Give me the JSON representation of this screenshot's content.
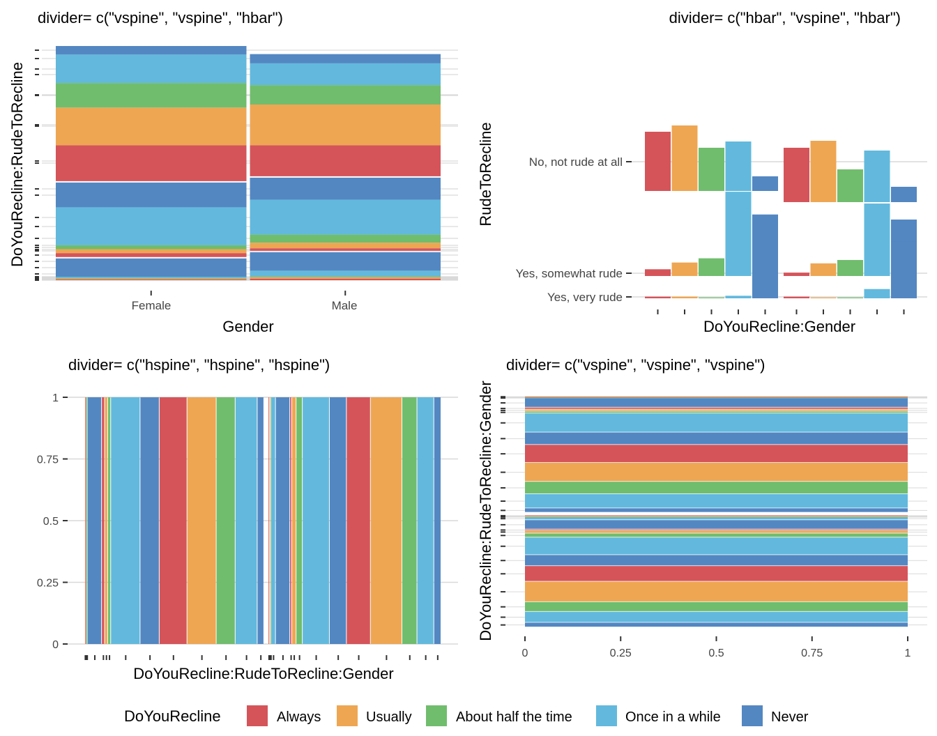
{
  "colors": {
    "Always": "#D5545A",
    "Usually": "#EEA653",
    "About half the time": "#70BD6D",
    "Once in a while": "#62B9DD",
    "Never": "#5387C2"
  },
  "legend": {
    "title": "DoYouRecline",
    "items": [
      "Always",
      "Usually",
      "About half the time",
      "Once in a while",
      "Never"
    ]
  },
  "chart_data": [
    {
      "type": "mosaic",
      "title": "divider= c(\"vspine\", \"vspine\", \"hbar\")",
      "xlabel": "Gender",
      "ylabel": "DoYouRecline:RudeToRecline",
      "x_tick_labels": [
        "Female",
        "Male"
      ],
      "gender_widths": [
        0.5,
        0.5
      ],
      "levels": {
        "DoYouRecline": [
          "Always",
          "Usually",
          "About half the time",
          "Once in a while",
          "Never"
        ],
        "RudeToRecline": [
          "No, not rude at all",
          "Yes, somewhat rude",
          "Yes, very rude"
        ]
      },
      "proportions_by_gender": {
        "Female": [
          [
            0.003,
            0.004,
            0.003,
            0.005,
            0.079
          ],
          [
            0.017,
            0.017,
            0.017,
            0.164,
            0.107
          ],
          [
            0.155,
            0.163,
            0.106,
            0.123,
            0.037
          ]
        ],
        "Male": [
          [
            0.006,
            0.007,
            0.003,
            0.025,
            0.08
          ],
          [
            0.011,
            0.024,
            0.035,
            0.151,
            0.095
          ],
          [
            0.134,
            0.176,
            0.084,
            0.094,
            0.04
          ]
        ]
      }
    },
    {
      "type": "bar",
      "title": "divider= c(\"hbar\", \"vspine\", \"hbar\")",
      "xlabel": "DoYouRecline:Gender",
      "ylabel": "RudeToRecline",
      "y_categories": [
        "No, not rude at all",
        "Yes, somewhat rude",
        "Yes, very rude"
      ],
      "x_groups": [
        "Female",
        "Male"
      ],
      "gender_widths": [
        0.5,
        0.5
      ],
      "series": [
        {
          "name": "Always",
          "values": {
            "Female": [
              0.85,
              0.08,
              0.02
            ],
            "Male": [
              0.78,
              0.04,
              0.02
            ]
          }
        },
        {
          "name": "Usually",
          "values": {
            "Female": [
              0.94,
              0.16,
              0.02
            ],
            "Male": [
              0.88,
              0.15,
              0.01
            ]
          }
        },
        {
          "name": "About half the time",
          "values": {
            "Female": [
              0.62,
              0.21,
              0.01
            ],
            "Male": [
              0.47,
              0.19,
              0.01
            ]
          }
        },
        {
          "name": "Once in a while",
          "values": {
            "Female": [
              0.71,
              1.0,
              0.03
            ],
            "Male": [
              0.74,
              0.86,
              0.11
            ]
          }
        },
        {
          "name": "Never",
          "values": {
            "Female": [
              0.21,
              0.73,
              0.73
            ],
            "Male": [
              0.22,
              0.67,
              0.67
            ]
          }
        }
      ]
    },
    {
      "type": "mosaic",
      "title": "divider= c(\"hspine\", \"hspine\", \"hspine\")",
      "xlabel": "DoYouRecline:RudeToRecline:Gender",
      "ylabel": "",
      "yticks": [
        0,
        0.25,
        0.5,
        0.75,
        1
      ],
      "ytick_labels": [
        "0",
        "0.25",
        "0.5",
        "0.75",
        "1"
      ]
    },
    {
      "type": "mosaic",
      "title": "divider= c(\"vspine\", \"vspine\", \"vspine\")",
      "xlabel": "",
      "ylabel": "DoYouRecline:RudeToRecline:Gender",
      "xticks": [
        0,
        0.25,
        0.5,
        0.75,
        1
      ],
      "xtick_labels": [
        "0",
        "0.25",
        "0.5",
        "0.75",
        "1"
      ]
    }
  ]
}
